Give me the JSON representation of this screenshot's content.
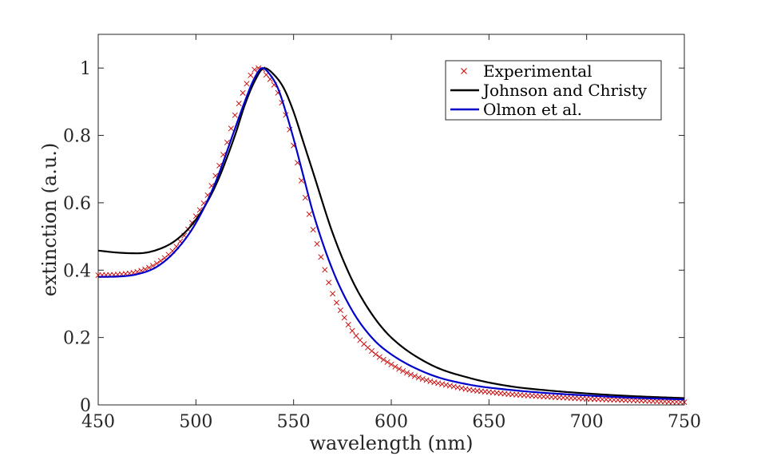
{
  "chart_data": {
    "type": "line",
    "title": "",
    "xlabel": "wavelength (nm)",
    "ylabel": "extinction (a.u.)",
    "xlim": [
      450,
      750
    ],
    "ylim": [
      0,
      1.1
    ],
    "xticks": [
      450,
      500,
      550,
      600,
      650,
      700,
      750
    ],
    "yticks": [
      0,
      0.2,
      0.4,
      0.6,
      0.8,
      1
    ],
    "ytick_labels": [
      "0",
      "0.2",
      "0.4",
      "0.6",
      "0.8",
      "1"
    ],
    "grid": false,
    "legend_position": "top-right",
    "series": [
      {
        "name": "Experimental",
        "style": "markers-x",
        "color": "#cc0000",
        "x": [
          450,
          460,
          470,
          480,
          490,
          500,
          505,
          510,
          515,
          520,
          525,
          530,
          533,
          536,
          540,
          545,
          550,
          555,
          560,
          565,
          570,
          575,
          580,
          590,
          600,
          610,
          620,
          630,
          640,
          650,
          660,
          680,
          700,
          720,
          740,
          750
        ],
        "y": [
          0.385,
          0.387,
          0.395,
          0.42,
          0.47,
          0.56,
          0.61,
          0.68,
          0.76,
          0.86,
          0.94,
          0.995,
          1.0,
          0.98,
          0.95,
          0.88,
          0.77,
          0.64,
          0.52,
          0.42,
          0.33,
          0.27,
          0.22,
          0.16,
          0.12,
          0.09,
          0.07,
          0.057,
          0.045,
          0.038,
          0.032,
          0.024,
          0.018,
          0.014,
          0.01,
          0.008
        ]
      },
      {
        "name": "Johnson and Christy",
        "style": "line",
        "color": "#000000",
        "x": [
          450,
          460,
          470,
          480,
          490,
          500,
          510,
          520,
          525,
          530,
          535,
          540,
          545,
          550,
          555,
          560,
          570,
          580,
          590,
          600,
          620,
          640,
          660,
          680,
          700,
          720,
          750
        ],
        "y": [
          0.458,
          0.452,
          0.45,
          0.46,
          0.49,
          0.55,
          0.65,
          0.8,
          0.89,
          0.96,
          1.0,
          0.98,
          0.94,
          0.87,
          0.78,
          0.69,
          0.51,
          0.37,
          0.27,
          0.2,
          0.12,
          0.08,
          0.056,
          0.043,
          0.034,
          0.027,
          0.02
        ]
      },
      {
        "name": "Olmon et al.",
        "style": "line",
        "color": "#0000cc",
        "x": [
          450,
          460,
          470,
          480,
          490,
          500,
          510,
          520,
          525,
          530,
          534,
          538,
          542,
          546,
          550,
          555,
          560,
          570,
          580,
          590,
          600,
          620,
          640,
          660,
          680,
          700,
          720,
          750
        ],
        "y": [
          0.38,
          0.381,
          0.388,
          0.41,
          0.46,
          0.54,
          0.66,
          0.82,
          0.9,
          0.97,
          1.0,
          0.98,
          0.94,
          0.87,
          0.79,
          0.68,
          0.57,
          0.4,
          0.28,
          0.2,
          0.15,
          0.09,
          0.06,
          0.045,
          0.035,
          0.028,
          0.022,
          0.016
        ]
      }
    ]
  }
}
